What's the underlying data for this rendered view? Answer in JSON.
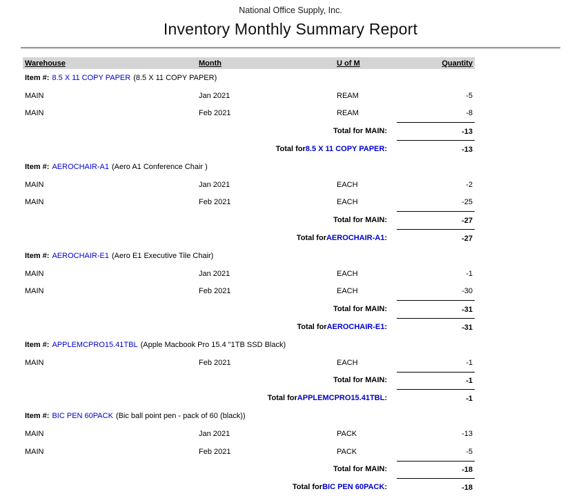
{
  "page": {
    "company": "National Office Supply, Inc.",
    "title": "Inventory Monthly Summary Report"
  },
  "table": {
    "columns": {
      "warehouse": "Warehouse",
      "month": "Month",
      "uom": "U of M",
      "quantity": "Quantity"
    },
    "labels": {
      "item_prefix": "Item #:",
      "total_prefix": "Total for ",
      "total_suffix": ":"
    },
    "colors": {
      "link_blue": "#0000cc",
      "header_bg": "#d4d4d4"
    },
    "items": [
      {
        "code": "8.5 X 11 COPY PAPER",
        "description": "(8.5 X 11 COPY PAPER)",
        "rows": [
          {
            "warehouse": "MAIN",
            "month": "Jan 2021",
            "uom": "REAM",
            "quantity": "-5"
          },
          {
            "warehouse": "MAIN",
            "month": "Feb 2021",
            "uom": "REAM",
            "quantity": "-8"
          }
        ],
        "warehouse_total_label": "Total for MAIN:",
        "warehouse_total": "-13",
        "item_total": "-13"
      },
      {
        "code": "AEROCHAIR-A1",
        "description": "(Aero A1 Conference Chair )",
        "rows": [
          {
            "warehouse": "MAIN",
            "month": "Jan 2021",
            "uom": "EACH",
            "quantity": "-2"
          },
          {
            "warehouse": "MAIN",
            "month": "Feb 2021",
            "uom": "EACH",
            "quantity": "-25"
          }
        ],
        "warehouse_total_label": "Total for MAIN:",
        "warehouse_total": "-27",
        "item_total": "-27"
      },
      {
        "code": "AEROCHAIR-E1",
        "description": "(Aero E1 Executive Tile Chair)",
        "rows": [
          {
            "warehouse": "MAIN",
            "month": "Jan 2021",
            "uom": "EACH",
            "quantity": "-1"
          },
          {
            "warehouse": "MAIN",
            "month": "Feb 2021",
            "uom": "EACH",
            "quantity": "-30"
          }
        ],
        "warehouse_total_label": "Total for MAIN:",
        "warehouse_total": "-31",
        "item_total": "-31"
      },
      {
        "code": "APPLEMCPRO15.41TBL",
        "description": "(Apple Macbook Pro 15.4 \"1TB SSD Black)",
        "rows": [
          {
            "warehouse": "MAIN",
            "month": "Feb 2021",
            "uom": "EACH",
            "quantity": "-1"
          }
        ],
        "warehouse_total_label": "Total for MAIN:",
        "warehouse_total": "-1",
        "item_total": "-1"
      },
      {
        "code": "BIC PEN 60PACK",
        "description": "(Bic ball point pen - pack of 60 (black))",
        "rows": [
          {
            "warehouse": "MAIN",
            "month": "Jan 2021",
            "uom": "PACK",
            "quantity": "-13"
          },
          {
            "warehouse": "MAIN",
            "month": "Feb 2021",
            "uom": "PACK",
            "quantity": "-5"
          }
        ],
        "warehouse_total_label": "Total for MAIN:",
        "warehouse_total": "-18",
        "item_total": "-18"
      }
    ]
  }
}
